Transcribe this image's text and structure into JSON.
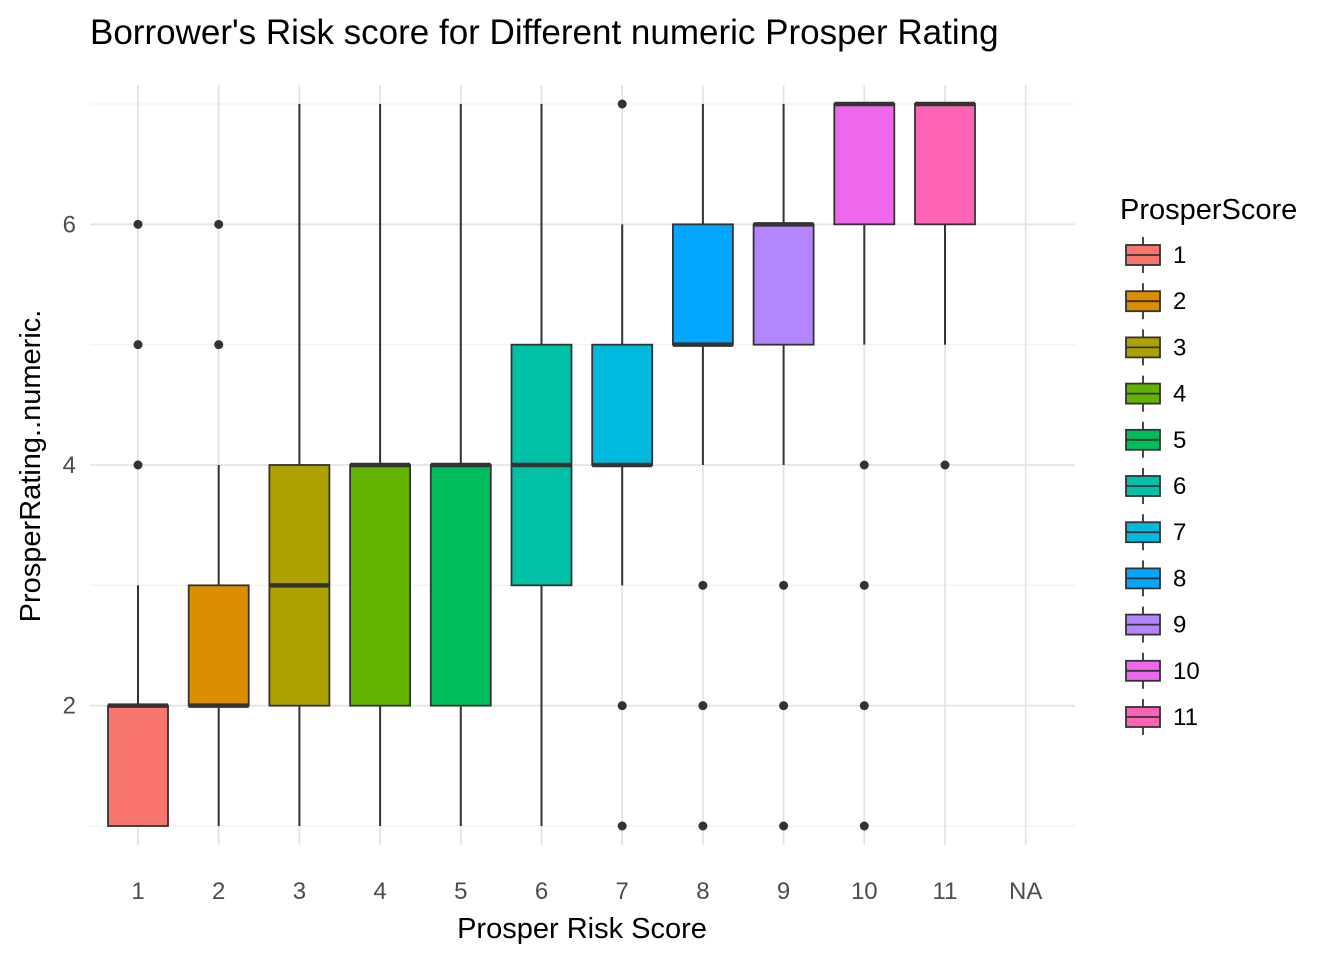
{
  "chart_data": {
    "type": "boxplot",
    "title": "Borrower's Risk score for Different numeric Prosper Rating",
    "xlabel": "Prosper Risk Score",
    "ylabel": "ProsperRating..numeric.",
    "categories": [
      "1",
      "2",
      "3",
      "4",
      "5",
      "6",
      "7",
      "8",
      "9",
      "10",
      "11",
      "NA"
    ],
    "ylim": [
      0.9,
      7.2
    ],
    "yticks": [
      2,
      4,
      6
    ],
    "grid": true,
    "legend": {
      "title": "ProsperScore",
      "placement": "right",
      "entries": [
        "1",
        "2",
        "3",
        "4",
        "5",
        "6",
        "7",
        "8",
        "9",
        "10",
        "11"
      ]
    },
    "series": [
      {
        "category": "1",
        "color": "#F8766D",
        "whisker_low": 1,
        "q1": 1,
        "median": 2,
        "q3": 2,
        "whisker_high": 3,
        "outliers": [
          4,
          5,
          6
        ]
      },
      {
        "category": "2",
        "color": "#DB8E00",
        "whisker_low": 1,
        "q1": 2,
        "median": 2,
        "q3": 3,
        "whisker_high": 4,
        "outliers": [
          5,
          6
        ]
      },
      {
        "category": "3",
        "color": "#AEA200",
        "whisker_low": 1,
        "q1": 2,
        "median": 3,
        "q3": 4,
        "whisker_high": 7,
        "outliers": []
      },
      {
        "category": "4",
        "color": "#64B200",
        "whisker_low": 1,
        "q1": 2,
        "median": 4,
        "q3": 4,
        "whisker_high": 7,
        "outliers": []
      },
      {
        "category": "5",
        "color": "#00BD5C",
        "whisker_low": 1,
        "q1": 2,
        "median": 4,
        "q3": 4,
        "whisker_high": 7,
        "outliers": []
      },
      {
        "category": "6",
        "color": "#00C1A7",
        "whisker_low": 1,
        "q1": 3,
        "median": 4,
        "q3": 5,
        "whisker_high": 7,
        "outliers": []
      },
      {
        "category": "7",
        "color": "#00BADE",
        "whisker_low": 3,
        "q1": 4,
        "median": 4,
        "q3": 5,
        "whisker_high": 6,
        "outliers": [
          1,
          2,
          7
        ]
      },
      {
        "category": "8",
        "color": "#00A6FF",
        "whisker_low": 4,
        "q1": 5,
        "median": 5,
        "q3": 6,
        "whisker_high": 7,
        "outliers": [
          1,
          2,
          3
        ]
      },
      {
        "category": "9",
        "color": "#B385FF",
        "whisker_low": 4,
        "q1": 5,
        "median": 6,
        "q3": 6,
        "whisker_high": 7,
        "outliers": [
          1,
          2,
          3
        ]
      },
      {
        "category": "10",
        "color": "#EF67EB",
        "whisker_low": 5,
        "q1": 6,
        "median": 7,
        "q3": 7,
        "whisker_high": 7,
        "outliers": [
          1,
          2,
          3,
          4
        ]
      },
      {
        "category": "11",
        "color": "#FF63B6",
        "whisker_low": 5,
        "q1": 6,
        "median": 7,
        "q3": 7,
        "whisker_high": 7,
        "outliers": [
          4
        ]
      }
    ]
  }
}
